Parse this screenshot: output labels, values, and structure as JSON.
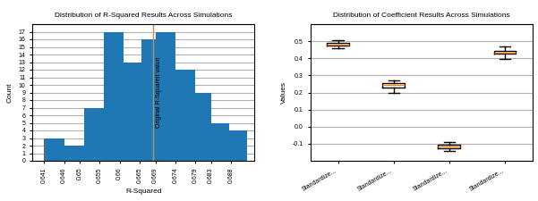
{
  "chart_data": [
    {
      "type": "histogram",
      "title": "Distribution of R-Squared Results Across Simulations",
      "x_label": "R-Squared",
      "y_label": "Count",
      "bins": [
        0.641,
        0.646,
        0.651,
        0.656,
        0.661,
        0.6655,
        0.669,
        0.674,
        0.679,
        0.683,
        0.6875,
        0.692
      ],
      "counts": [
        3,
        2,
        7,
        17,
        13,
        16,
        17,
        12,
        9,
        5,
        4
      ],
      "xlim": [
        0.638,
        0.694
      ],
      "xticks": [
        0.641,
        0.646,
        0.65,
        0.655,
        0.66,
        0.665,
        0.669,
        0.674,
        0.679,
        0.683,
        0.688
      ],
      "ylim": [
        0,
        18
      ],
      "yticks": [
        0,
        1,
        2,
        3,
        4,
        5,
        6,
        7,
        8,
        9,
        10,
        11,
        12,
        13,
        14,
        15,
        16,
        17
      ],
      "grid": true,
      "reference_line": {
        "x": 0.6685,
        "label": "Original R-Squared value",
        "color": "#ff7f0e"
      }
    },
    {
      "type": "box",
      "title": "Distribution of Coefficient Results Across Simulations",
      "y_label": "Values",
      "categories": [
        "Standardize...",
        "Standardize...",
        "Standardize...",
        "Standardize..."
      ],
      "boxes": [
        {
          "whisker_low": 0.46,
          "q1": 0.475,
          "median": 0.48,
          "q3": 0.488,
          "whisker_high": 0.505
        },
        {
          "whisker_low": 0.198,
          "q1": 0.228,
          "median": 0.245,
          "q3": 0.255,
          "whisker_high": 0.272
        },
        {
          "whisker_low": -0.145,
          "q1": -0.125,
          "median": -0.115,
          "q3": -0.105,
          "whisker_high": -0.09
        },
        {
          "whisker_low": 0.395,
          "q1": 0.425,
          "median": 0.435,
          "q3": 0.445,
          "whisker_high": 0.47
        }
      ],
      "ylim": [
        -0.2,
        0.6
      ],
      "yticks": [
        -0.1,
        0.0,
        0.1,
        0.2,
        0.3,
        0.4,
        0.5
      ],
      "grid": true
    }
  ]
}
